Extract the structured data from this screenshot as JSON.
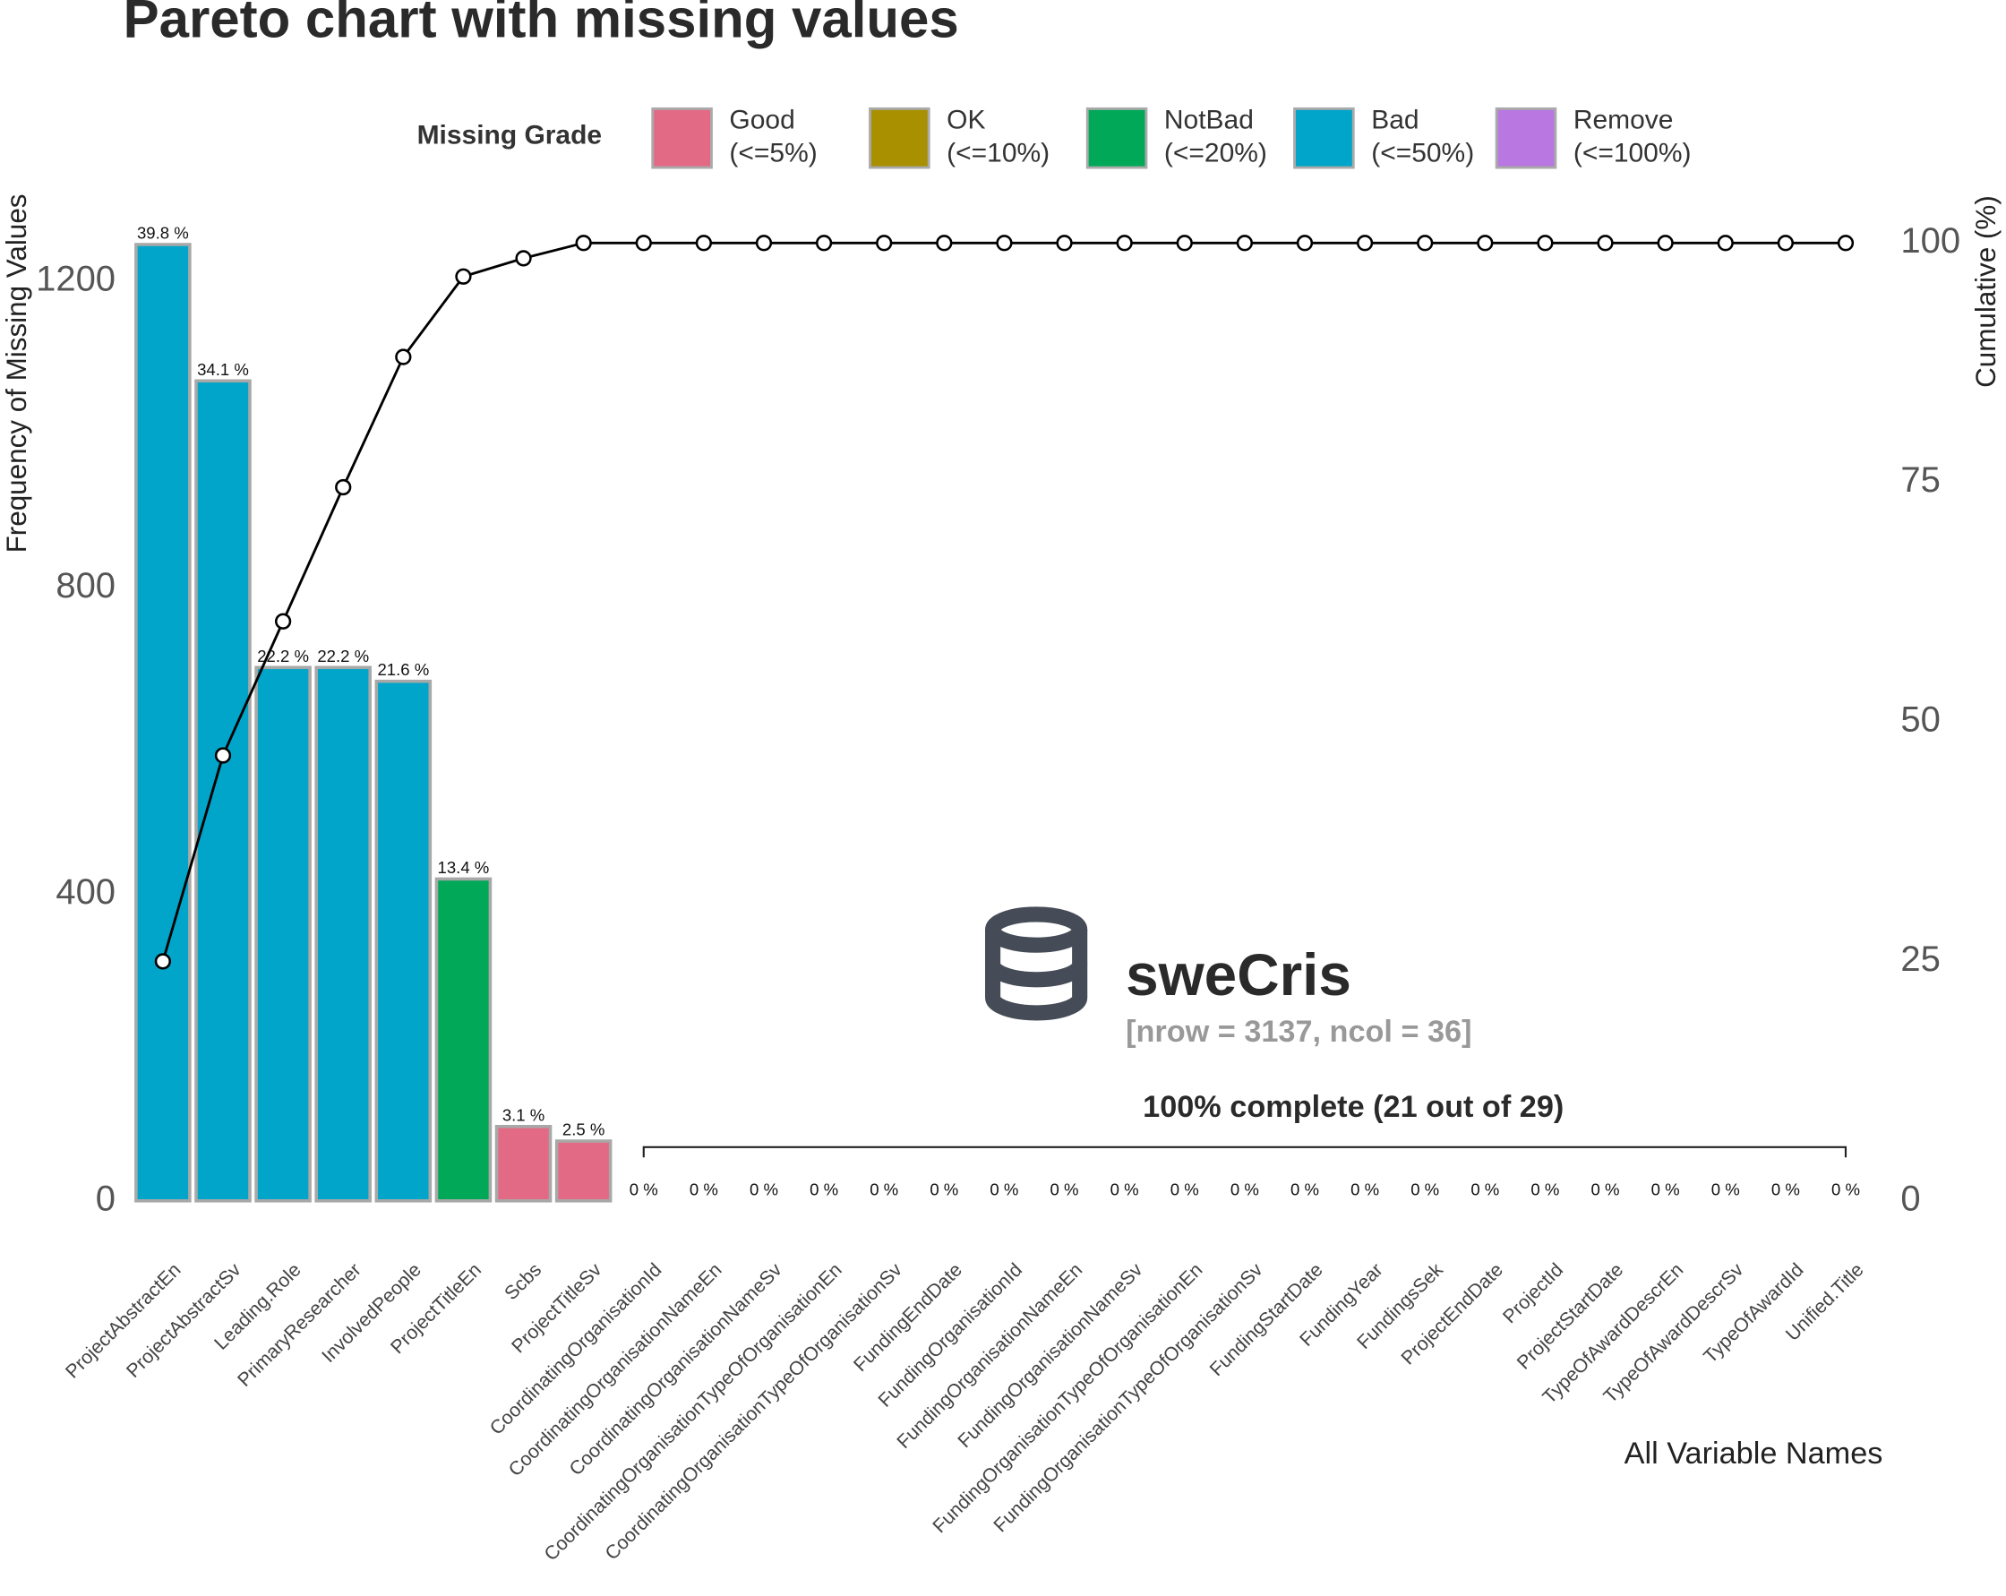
{
  "chart_data": {
    "type": "pareto",
    "title": "Pareto chart with missing values",
    "ylabel": "Frequency of Missing Values",
    "y2label": "Cumulative (%)",
    "xlabel": "All Variable Names",
    "legend_title": "Missing Grade",
    "legend": [
      {
        "name": "Good",
        "range": "(<=5%)",
        "color": "#e36a85"
      },
      {
        "name": "OK",
        "range": "(<=10%)",
        "color": "#a89000"
      },
      {
        "name": "NotBad",
        "range": "(<=20%)",
        "color": "#00a857"
      },
      {
        "name": "Bad",
        "range": "(<=50%)",
        "color": "#00a5c9"
      },
      {
        "name": "Remove",
        "range": "(<=100%)",
        "color": "#b877e1"
      }
    ],
    "categories": [
      "ProjectAbstractEn",
      "ProjectAbstractSv",
      "Leading.Role",
      "PrimaryResearcher",
      "InvolvedPeople",
      "ProjectTitleEn",
      "Scbs",
      "ProjectTitleSv",
      "CoordinatingOrganisationId",
      "CoordinatingOrganisationNameEn",
      "CoordinatingOrganisationNameSv",
      "CoordinatingOrganisationTypeOfOrganisationEn",
      "CoordinatingOrganisationTypeOfOrganisationSv",
      "FundingEndDate",
      "FundingOrganisationId",
      "FundingOrganisationNameEn",
      "FundingOrganisationNameSv",
      "FundingOrganisationTypeOfOrganisationEn",
      "FundingOrganisationTypeOfOrganisationSv",
      "FundingStartDate",
      "FundingYear",
      "FundingsSek",
      "ProjectEndDate",
      "ProjectId",
      "ProjectStartDate",
      "TypeOfAwardDescrEn",
      "TypeOfAwardDescrSv",
      "TypeOfAwardId",
      "Unified.Title"
    ],
    "values": [
      1248,
      1070,
      696,
      696,
      678,
      420,
      97,
      78,
      0,
      0,
      0,
      0,
      0,
      0,
      0,
      0,
      0,
      0,
      0,
      0,
      0,
      0,
      0,
      0,
      0,
      0,
      0,
      0,
      0
    ],
    "colors": [
      "#00a5c9",
      "#00a5c9",
      "#00a5c9",
      "#00a5c9",
      "#00a5c9",
      "#00a857",
      "#e36a85",
      "#e36a85",
      "#e36a85",
      "#e36a85",
      "#e36a85",
      "#e36a85",
      "#e36a85",
      "#e36a85",
      "#e36a85",
      "#e36a85",
      "#e36a85",
      "#e36a85",
      "#e36a85",
      "#e36a85",
      "#e36a85",
      "#e36a85",
      "#e36a85",
      "#e36a85",
      "#e36a85",
      "#e36a85",
      "#e36a85",
      "#e36a85",
      "#e36a85"
    ],
    "percent": [
      39.8,
      34.1,
      22.2,
      22.2,
      21.6,
      13.4,
      3.1,
      2.5,
      0,
      0,
      0,
      0,
      0,
      0,
      0,
      0,
      0,
      0,
      0,
      0,
      0,
      0,
      0,
      0,
      0,
      0,
      0,
      0,
      0
    ],
    "percent_labels": [
      "39.8 %",
      "34.1 %",
      "22.2 %",
      "22.2 %",
      "21.6 %",
      "13.4 %",
      "3.1 %",
      "2.5 %",
      "0 %",
      "0 %",
      "0 %",
      "0 %",
      "0 %",
      "0 %",
      "0 %",
      "0 %",
      "0 %",
      "0 %",
      "0 %",
      "0 %",
      "0 %",
      "0 %",
      "0 %",
      "0 %",
      "0 %",
      "0 %",
      "0 %",
      "0 %",
      "0 %"
    ],
    "cumulative": {
      "axis": "y2",
      "color": "#000000",
      "values": [
        25.0,
        46.5,
        60.5,
        74.5,
        88.1,
        96.5,
        98.4,
        100,
        100,
        100,
        100,
        100,
        100,
        100,
        100,
        100,
        100,
        100,
        100,
        100,
        100,
        100,
        100,
        100,
        100,
        100,
        100,
        100,
        100
      ]
    },
    "ylim": [
      0,
      1250
    ],
    "yticks": [
      0,
      400,
      800,
      1200
    ],
    "y2lim": [
      0,
      100
    ],
    "y2ticks": [
      0,
      25,
      50,
      75,
      100
    ],
    "annotations": {
      "dataset": "sweCris",
      "dims": "[nrow = 3137, ncol = 36]",
      "complete": "100% complete (21 out of 29)"
    }
  }
}
